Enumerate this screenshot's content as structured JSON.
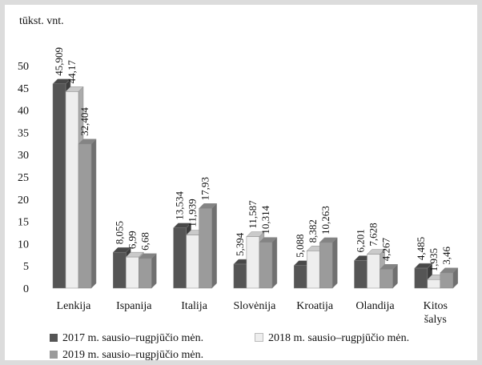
{
  "chart_data": {
    "type": "bar",
    "unit_label": "tūkst. vnt.",
    "categories": [
      "Lenkija",
      "Ispanija",
      "Italija",
      "Slovėnija",
      "Kroatija",
      "Olandija",
      "Kitos šalys"
    ],
    "category_lines": [
      [
        "Lenkija"
      ],
      [
        "Ispanija"
      ],
      [
        "Italija"
      ],
      [
        "Slovėnija"
      ],
      [
        "Kroatija"
      ],
      [
        "Olandija"
      ],
      [
        "Kitos",
        "šalys"
      ]
    ],
    "series": [
      {
        "name": "2017 m. sausio–rugpjūčio mėn.",
        "values": [
          45.909,
          8.055,
          13.534,
          5.394,
          5.088,
          6.201,
          4.485
        ],
        "labels": [
          "45,909",
          "8,055",
          "13,534",
          "5,394",
          "5,088",
          "6,201",
          "4,485"
        ],
        "color": "#555555"
      },
      {
        "name": "2018 m. sausio–rugpjūčio mėn.",
        "values": [
          44.17,
          6.99,
          11.939,
          11.587,
          8.382,
          7.628,
          1.935
        ],
        "labels": [
          "44,17",
          "6,99",
          "11,939",
          "11,587",
          "8,382",
          "7,628",
          "1,935"
        ],
        "color": "#eeeeee"
      },
      {
        "name": "2019 m. sausio–rugpjūčio mėn.",
        "values": [
          32.404,
          6.68,
          17.93,
          10.314,
          10.263,
          4.267,
          3.46
        ],
        "labels": [
          "32,404",
          "6,68",
          "17,93",
          "10,314",
          "10,263",
          "4,267",
          "3,46"
        ],
        "color": "#9b9b9b"
      }
    ],
    "ylim": [
      0,
      50
    ],
    "yticks": [
      "0",
      "5",
      "10",
      "15",
      "20",
      "25",
      "30",
      "35",
      "40",
      "45",
      "50"
    ],
    "grid": false,
    "legend_position": "bottom"
  }
}
